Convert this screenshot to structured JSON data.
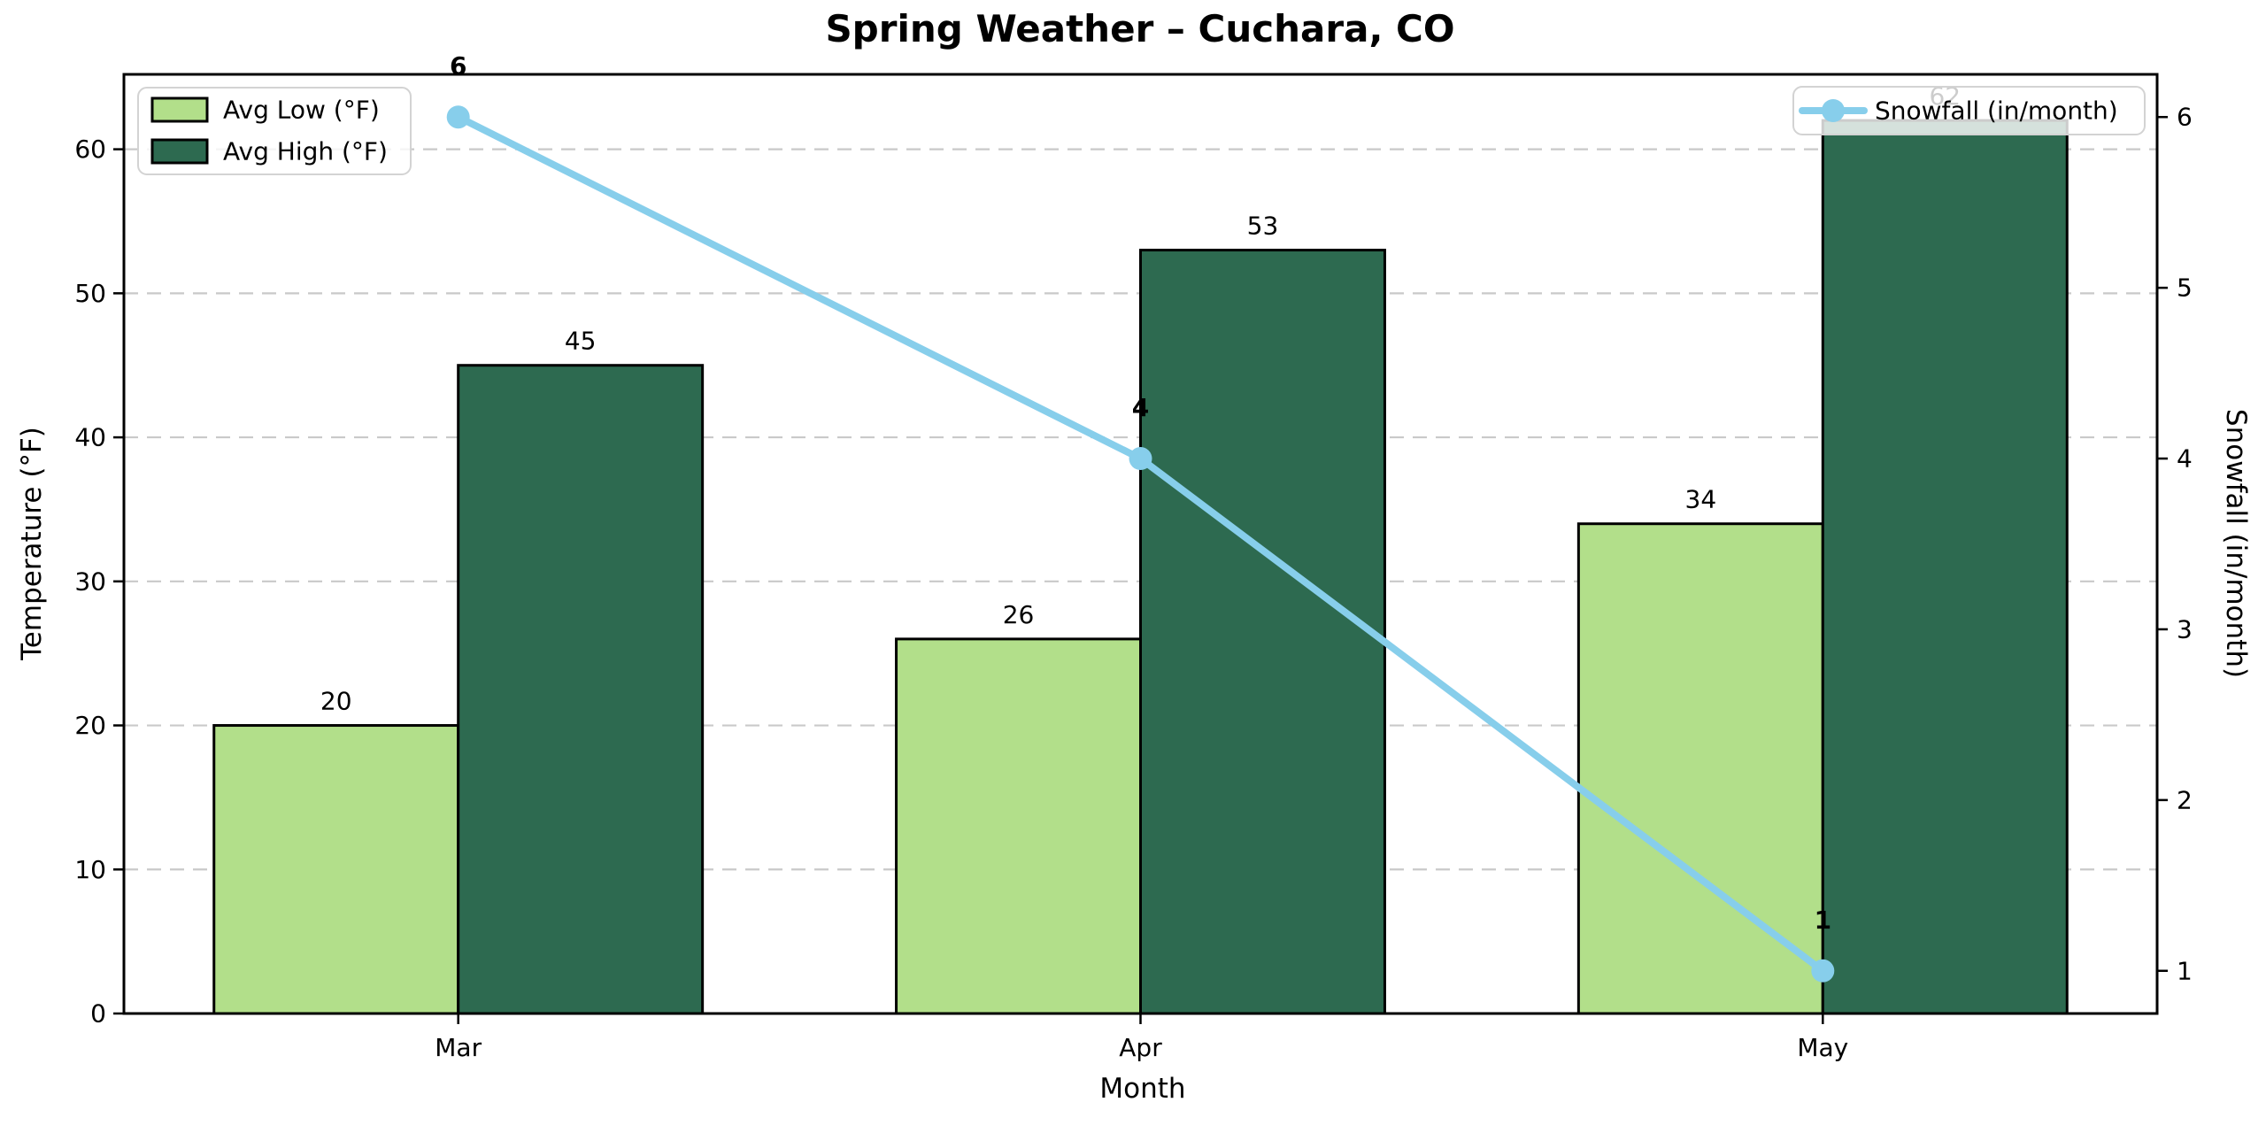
{
  "chart_data": {
    "type": "bar",
    "subtype": "grouped-bars-with-line-overlay",
    "title": "Spring Weather – Cuchara, CO",
    "xlabel": "Month",
    "ylabel_left": "Temperature (°F)",
    "ylabel_right": "Snowfall (in/month)",
    "categories": [
      "Mar",
      "Apr",
      "May"
    ],
    "series": [
      {
        "name": "Avg Low (°F)",
        "type": "bar",
        "axis": "left",
        "values": [
          20,
          26,
          34
        ],
        "color": "#b2df8a"
      },
      {
        "name": "Avg High (°F)",
        "type": "bar",
        "axis": "left",
        "values": [
          45,
          53,
          62
        ],
        "color": "#2d6a50"
      },
      {
        "name": "Snowfall (in/month)",
        "type": "line",
        "axis": "right",
        "values": [
          6,
          4,
          1
        ],
        "color": "#87ceeb"
      }
    ],
    "bar_value_labels": {
      "avg_low": [
        20,
        26,
        34
      ],
      "avg_high": [
        45,
        53,
        62
      ]
    },
    "line_point_labels": [
      6,
      4,
      1
    ],
    "yticks_left": [
      0,
      10,
      20,
      30,
      40,
      50,
      60
    ],
    "yticks_right": [
      1,
      2,
      3,
      4,
      5,
      6
    ],
    "ylim_left": [
      0,
      65.2
    ],
    "ylim_right": [
      0.75,
      6.25
    ],
    "grid": "horizontal dashed gridlines at left-axis ticks",
    "legend_left_entries": [
      "Avg Low (°F)",
      "Avg High (°F)"
    ],
    "legend_right_entries": [
      "Snowfall (in/month)"
    ],
    "colors": {
      "bar_edge": "#000000",
      "grid": "#c9c9c9",
      "line": "#87ceeb",
      "marker": "#87ceeb",
      "point_label": "#0000cd",
      "legend_border": "#d3d3d3",
      "axes": "#000000",
      "background": "#ffffff"
    }
  }
}
